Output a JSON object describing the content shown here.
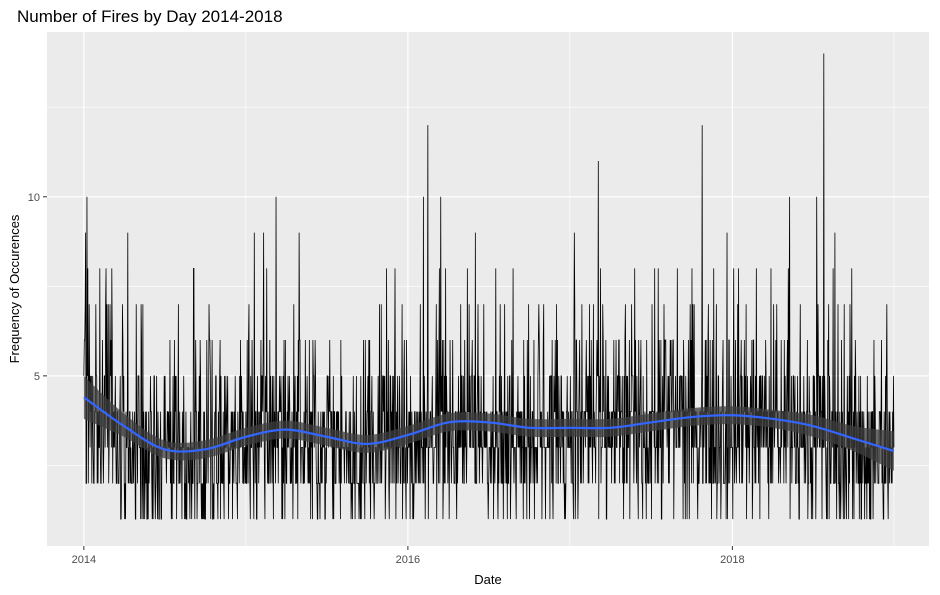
{
  "chart_data": {
    "type": "line",
    "title": "Number of Fires by Day 2014-2018",
    "xlabel": "Date",
    "ylabel": "Frequency of Occurences",
    "x_range": [
      "2013-10-10",
      "2019-03-20"
    ],
    "ylim": [
      0.25,
      14.6
    ],
    "x_ticks": [
      {
        "date": "2014-01-01",
        "label": "2014"
      },
      {
        "date": "2016-01-01",
        "label": "2016"
      },
      {
        "date": "2018-01-01",
        "label": "2018"
      }
    ],
    "y_ticks": [
      {
        "value": 5,
        "label": "5"
      },
      {
        "value": 10,
        "label": "10"
      }
    ],
    "grid": true,
    "series": [
      {
        "kind": "daily-counts",
        "start": "2014-01-01",
        "end": "2018-12-31",
        "baseline": 1,
        "color": "#000000",
        "y_range": [
          1,
          14
        ],
        "peaks": [
          {
            "date": "2014-01-05",
            "y": 9
          },
          {
            "date": "2014-01-08",
            "y": 10
          },
          {
            "date": "2014-02-20",
            "y": 8
          },
          {
            "date": "2014-04-10",
            "y": 9
          },
          {
            "date": "2014-09-05",
            "y": 8
          },
          {
            "date": "2015-01-20",
            "y": 9
          },
          {
            "date": "2015-02-10",
            "y": 9
          },
          {
            "date": "2015-03-10",
            "y": 10
          },
          {
            "date": "2015-05-01",
            "y": 9
          },
          {
            "date": "2016-02-05",
            "y": 10
          },
          {
            "date": "2016-02-15",
            "y": 12
          },
          {
            "date": "2016-03-15",
            "y": 10
          },
          {
            "date": "2016-06-01",
            "y": 9
          },
          {
            "date": "2017-01-10",
            "y": 9
          },
          {
            "date": "2017-03-05",
            "y": 11
          },
          {
            "date": "2017-10-25",
            "y": 12
          },
          {
            "date": "2017-12-20",
            "y": 9
          },
          {
            "date": "2018-05-10",
            "y": 10
          },
          {
            "date": "2018-07-10",
            "y": 10
          },
          {
            "date": "2018-07-26",
            "y": 14
          },
          {
            "date": "2018-08-20",
            "y": 9
          }
        ]
      },
      {
        "kind": "smooth",
        "color": "#3366FF",
        "band_color": "#3d3d3d",
        "points": [
          {
            "date": "2014-01-01",
            "y": 4.4,
            "lo": 3.8,
            "hi": 5.0
          },
          {
            "date": "2014-04-01",
            "y": 3.6,
            "lo": 3.3,
            "hi": 3.95
          },
          {
            "date": "2014-07-01",
            "y": 2.95,
            "lo": 2.7,
            "hi": 3.2
          },
          {
            "date": "2014-10-01",
            "y": 2.95,
            "lo": 2.7,
            "hi": 3.2
          },
          {
            "date": "2015-01-01",
            "y": 3.3,
            "lo": 3.05,
            "hi": 3.55
          },
          {
            "date": "2015-04-01",
            "y": 3.5,
            "lo": 3.25,
            "hi": 3.75
          },
          {
            "date": "2015-07-01",
            "y": 3.3,
            "lo": 3.05,
            "hi": 3.55
          },
          {
            "date": "2015-10-01",
            "y": 3.1,
            "lo": 2.85,
            "hi": 3.35
          },
          {
            "date": "2016-01-01",
            "y": 3.35,
            "lo": 3.1,
            "hi": 3.6
          },
          {
            "date": "2016-04-01",
            "y": 3.7,
            "lo": 3.45,
            "hi": 3.95
          },
          {
            "date": "2016-07-01",
            "y": 3.7,
            "lo": 3.45,
            "hi": 3.95
          },
          {
            "date": "2016-10-01",
            "y": 3.55,
            "lo": 3.3,
            "hi": 3.8
          },
          {
            "date": "2017-01-01",
            "y": 3.55,
            "lo": 3.3,
            "hi": 3.8
          },
          {
            "date": "2017-04-01",
            "y": 3.55,
            "lo": 3.3,
            "hi": 3.8
          },
          {
            "date": "2017-07-01",
            "y": 3.7,
            "lo": 3.45,
            "hi": 3.95
          },
          {
            "date": "2017-10-01",
            "y": 3.85,
            "lo": 3.6,
            "hi": 4.1
          },
          {
            "date": "2018-01-01",
            "y": 3.9,
            "lo": 3.65,
            "hi": 4.15
          },
          {
            "date": "2018-04-01",
            "y": 3.8,
            "lo": 3.55,
            "hi": 4.05
          },
          {
            "date": "2018-07-01",
            "y": 3.6,
            "lo": 3.3,
            "hi": 3.9
          },
          {
            "date": "2018-10-01",
            "y": 3.25,
            "lo": 2.9,
            "hi": 3.6
          },
          {
            "date": "2018-12-31",
            "y": 2.9,
            "lo": 2.35,
            "hi": 3.45
          }
        ]
      }
    ]
  }
}
